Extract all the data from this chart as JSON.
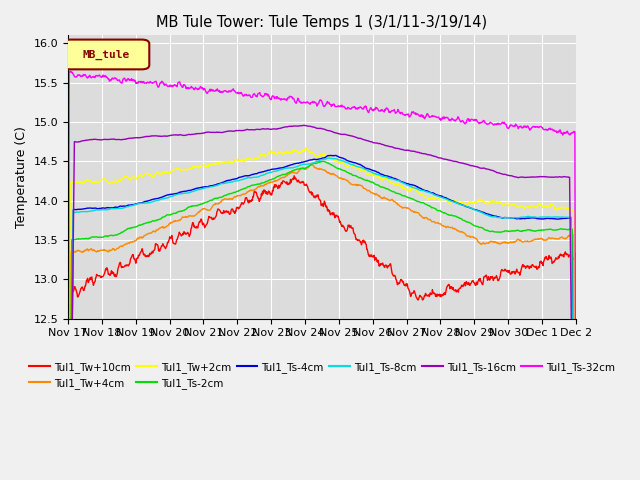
{
  "title": "MB Tule Tower: Tule Temps 1 (3/1/11-3/19/14)",
  "ylabel": "Temperature (C)",
  "ylim": [
    12.5,
    16.1
  ],
  "background_color": "#dcdcdc",
  "series": {
    "Tul1_Tw+10cm": {
      "color": "#ff0000",
      "lw": 1.0
    },
    "Tul1_Tw+4cm": {
      "color": "#ff8800",
      "lw": 1.0
    },
    "Tul1_Tw+2cm": {
      "color": "#ffff00",
      "lw": 1.0
    },
    "Tul1_Ts-2cm": {
      "color": "#00dd00",
      "lw": 1.0
    },
    "Tul1_Ts-4cm": {
      "color": "#0000dd",
      "lw": 1.0
    },
    "Tul1_Ts-8cm": {
      "color": "#00dddd",
      "lw": 1.0
    },
    "Tul1_Ts-16cm": {
      "color": "#9900bb",
      "lw": 1.0
    },
    "Tul1_Ts-32cm": {
      "color": "#ff00ff",
      "lw": 1.0
    }
  },
  "xtick_labels": [
    "Nov 17",
    "Nov 18",
    "Nov 19",
    "Nov 20",
    "Nov 21",
    "Nov 22",
    "Nov 23",
    "Nov 24",
    "Nov 25",
    "Nov 26",
    "Nov 27",
    "Nov 28",
    "Nov 29",
    "Nov 30",
    "Dec 1",
    "Dec 2"
  ],
  "n_points": 960
}
